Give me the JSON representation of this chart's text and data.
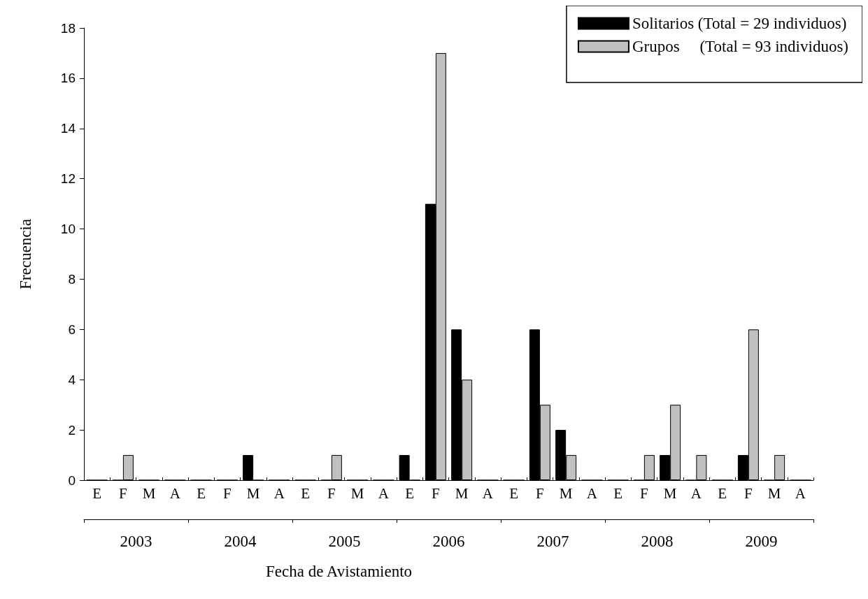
{
  "chart_data": {
    "type": "bar",
    "xlabel": "Fecha de Avistamiento",
    "ylabel": "Frecuencia",
    "categories": [
      "E",
      "F",
      "M",
      "A",
      "E",
      "F",
      "M",
      "A",
      "E",
      "F",
      "M",
      "A",
      "E",
      "F",
      "M",
      "A",
      "E",
      "F",
      "M",
      "A",
      "E",
      "F",
      "M",
      "A",
      "E",
      "F",
      "M",
      "A"
    ],
    "series": [
      {
        "name": "Solitarios (Total = 29 individuos)",
        "color": "#000000",
        "values": [
          0,
          0,
          0,
          0,
          0,
          0,
          1,
          0,
          0,
          0,
          0,
          0,
          1,
          11,
          6,
          0,
          0,
          6,
          2,
          0,
          0,
          0,
          1,
          0,
          0,
          1,
          0,
          0
        ]
      },
      {
        "name": "Grupos     (Total = 93 individuos)",
        "color": "#c0c0c0",
        "values": [
          0,
          1,
          0,
          0,
          0,
          0,
          0,
          0,
          0,
          1,
          0,
          0,
          0,
          17,
          4,
          0,
          0,
          3,
          1,
          0,
          0,
          1,
          3,
          1,
          0,
          6,
          1,
          0
        ]
      }
    ],
    "annotations": [
      "2003",
      "2004",
      "2005",
      "2006",
      "2007",
      "2008",
      "2009"
    ],
    "ylim": [
      0,
      18
    ],
    "yticks": [
      0,
      2,
      4,
      6,
      8,
      10,
      12,
      14,
      16,
      18
    ],
    "grid": false,
    "legend": "top right"
  }
}
